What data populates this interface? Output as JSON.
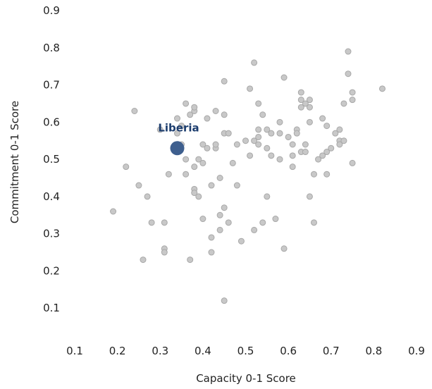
{
  "chart_data": {
    "type": "scatter",
    "title": "",
    "xlabel": "Capacity 0-1 Score",
    "ylabel": "Commitment 0-1 Score",
    "xlim": [
      0.1,
      0.9
    ],
    "ylim": [
      0.0,
      0.9
    ],
    "x_ticks": [
      "0.1",
      "0.2",
      "0.3",
      "0.4",
      "0.5",
      "0.6",
      "0.7",
      "0.8",
      "0.9"
    ],
    "y_ticks": [
      "0.1",
      "0.2",
      "0.3",
      "0.4",
      "0.5",
      "0.6",
      "0.7",
      "0.8",
      "0.9"
    ],
    "grid": false,
    "point_color": "#c8c8c8",
    "point_stroke": "#a8a8a8",
    "highlight_color": "#3e5f8e",
    "highlight_label_color": "#1c3d6e",
    "highlight": {
      "label": "Liberia",
      "x": 0.34,
      "y": 0.53
    },
    "points": [
      [
        0.19,
        0.36
      ],
      [
        0.22,
        0.48
      ],
      [
        0.24,
        0.63
      ],
      [
        0.25,
        0.43
      ],
      [
        0.26,
        0.23
      ],
      [
        0.27,
        0.4
      ],
      [
        0.28,
        0.33
      ],
      [
        0.3,
        0.58
      ],
      [
        0.31,
        0.33
      ],
      [
        0.31,
        0.26
      ],
      [
        0.31,
        0.25
      ],
      [
        0.32,
        0.46
      ],
      [
        0.34,
        0.61
      ],
      [
        0.34,
        0.57
      ],
      [
        0.35,
        0.59
      ],
      [
        0.35,
        0.54
      ],
      [
        0.36,
        0.65
      ],
      [
        0.36,
        0.5
      ],
      [
        0.36,
        0.46
      ],
      [
        0.37,
        0.62
      ],
      [
        0.37,
        0.23
      ],
      [
        0.38,
        0.63
      ],
      [
        0.38,
        0.64
      ],
      [
        0.38,
        0.48
      ],
      [
        0.38,
        0.42
      ],
      [
        0.38,
        0.41
      ],
      [
        0.39,
        0.5
      ],
      [
        0.39,
        0.4
      ],
      [
        0.4,
        0.54
      ],
      [
        0.4,
        0.49
      ],
      [
        0.4,
        0.34
      ],
      [
        0.41,
        0.53
      ],
      [
        0.41,
        0.61
      ],
      [
        0.42,
        0.43
      ],
      [
        0.42,
        0.29
      ],
      [
        0.42,
        0.25
      ],
      [
        0.43,
        0.63
      ],
      [
        0.43,
        0.53
      ],
      [
        0.43,
        0.54
      ],
      [
        0.44,
        0.45
      ],
      [
        0.44,
        0.35
      ],
      [
        0.44,
        0.31
      ],
      [
        0.45,
        0.71
      ],
      [
        0.45,
        0.57
      ],
      [
        0.45,
        0.62
      ],
      [
        0.45,
        0.37
      ],
      [
        0.45,
        0.12
      ],
      [
        0.46,
        0.57
      ],
      [
        0.46,
        0.33
      ],
      [
        0.47,
        0.49
      ],
      [
        0.48,
        0.54
      ],
      [
        0.48,
        0.43
      ],
      [
        0.49,
        0.28
      ],
      [
        0.5,
        0.55
      ],
      [
        0.51,
        0.69
      ],
      [
        0.51,
        0.51
      ],
      [
        0.52,
        0.76
      ],
      [
        0.52,
        0.55
      ],
      [
        0.52,
        0.31
      ],
      [
        0.53,
        0.65
      ],
      [
        0.53,
        0.58
      ],
      [
        0.53,
        0.56
      ],
      [
        0.53,
        0.54
      ],
      [
        0.54,
        0.62
      ],
      [
        0.54,
        0.33
      ],
      [
        0.55,
        0.58
      ],
      [
        0.55,
        0.53
      ],
      [
        0.55,
        0.4
      ],
      [
        0.56,
        0.57
      ],
      [
        0.56,
        0.51
      ],
      [
        0.57,
        0.34
      ],
      [
        0.58,
        0.6
      ],
      [
        0.58,
        0.57
      ],
      [
        0.58,
        0.5
      ],
      [
        0.59,
        0.72
      ],
      [
        0.59,
        0.26
      ],
      [
        0.6,
        0.56
      ],
      [
        0.61,
        0.54
      ],
      [
        0.61,
        0.51
      ],
      [
        0.61,
        0.48
      ],
      [
        0.62,
        0.58
      ],
      [
        0.62,
        0.57
      ],
      [
        0.63,
        0.68
      ],
      [
        0.63,
        0.64
      ],
      [
        0.63,
        0.66
      ],
      [
        0.63,
        0.52
      ],
      [
        0.64,
        0.65
      ],
      [
        0.64,
        0.54
      ],
      [
        0.64,
        0.52
      ],
      [
        0.65,
        0.66
      ],
      [
        0.65,
        0.64
      ],
      [
        0.65,
        0.6
      ],
      [
        0.65,
        0.4
      ],
      [
        0.66,
        0.46
      ],
      [
        0.66,
        0.33
      ],
      [
        0.67,
        0.5
      ],
      [
        0.68,
        0.61
      ],
      [
        0.68,
        0.51
      ],
      [
        0.69,
        0.59
      ],
      [
        0.69,
        0.52
      ],
      [
        0.69,
        0.46
      ],
      [
        0.7,
        0.53
      ],
      [
        0.71,
        0.57
      ],
      [
        0.72,
        0.58
      ],
      [
        0.72,
        0.55
      ],
      [
        0.72,
        0.54
      ],
      [
        0.73,
        0.55
      ],
      [
        0.73,
        0.65
      ],
      [
        0.74,
        0.79
      ],
      [
        0.74,
        0.73
      ],
      [
        0.75,
        0.66
      ],
      [
        0.75,
        0.68
      ],
      [
        0.75,
        0.49
      ],
      [
        0.82,
        0.69
      ]
    ]
  }
}
